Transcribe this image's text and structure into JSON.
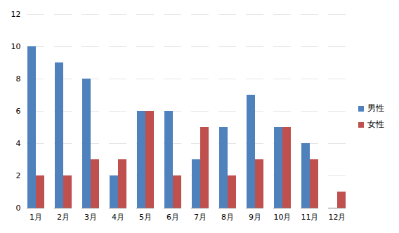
{
  "chart_data": {
    "type": "bar",
    "categories": [
      "1月",
      "2月",
      "3月",
      "4月",
      "5月",
      "6月",
      "7月",
      "8月",
      "9月",
      "10月",
      "11月",
      "12月"
    ],
    "series": [
      {
        "name": "男性",
        "color": "#4f81bd",
        "values": [
          10,
          9,
          8,
          2,
          6,
          6,
          3,
          5,
          7,
          5,
          4,
          0
        ]
      },
      {
        "name": "女性",
        "color": "#c0504d",
        "values": [
          2,
          2,
          3,
          3,
          6,
          2,
          5,
          2,
          3,
          5,
          3,
          1
        ]
      }
    ],
    "ylim": [
      0,
      12
    ],
    "yticks": [
      0,
      2,
      4,
      6,
      8,
      10,
      12
    ],
    "grid": true,
    "legend": "right"
  }
}
